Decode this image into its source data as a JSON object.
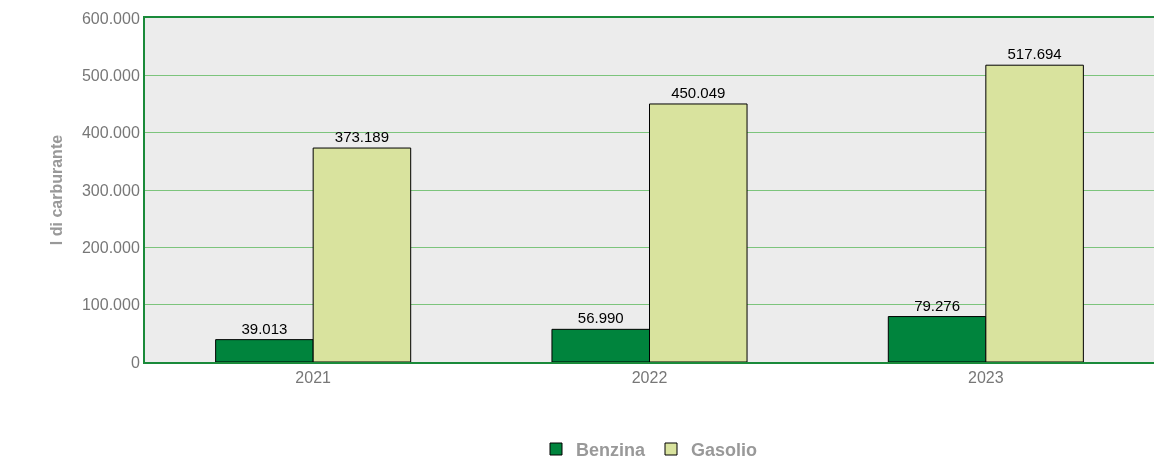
{
  "chart_data": {
    "type": "bar",
    "ylabel": "l di carburante",
    "categories": [
      "2021",
      "2022",
      "2023"
    ],
    "series": [
      {
        "name": "Benzina",
        "color": "#00843d",
        "values": [
          39013,
          56990,
          79276
        ],
        "value_labels": [
          "39.013",
          "56.990",
          "79.276"
        ]
      },
      {
        "name": "Gasolio",
        "color": "#d9e39e",
        "values": [
          373189,
          450049,
          517694
        ],
        "value_labels": [
          "373.189",
          "450.049",
          "517.694"
        ]
      }
    ],
    "ylim": [
      0,
      600000
    ],
    "yticks": [
      {
        "value": 0,
        "label": "0"
      },
      {
        "value": 100000,
        "label": "100.000"
      },
      {
        "value": 200000,
        "label": "200.000"
      },
      {
        "value": 300000,
        "label": "300.000"
      },
      {
        "value": 400000,
        "label": "400.000"
      },
      {
        "value": 500000,
        "label": "500.000"
      },
      {
        "value": 600000,
        "label": "600.000"
      }
    ],
    "grid": "y",
    "legend": "bottom"
  }
}
